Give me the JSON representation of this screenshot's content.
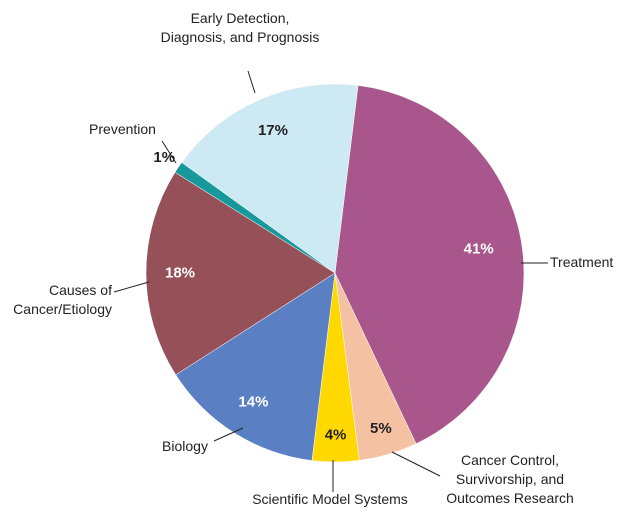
{
  "chart_data": {
    "type": "pie",
    "categories": [
      "Treatment",
      "Cancer Control, Survivorship, and Outcomes Research",
      "Scientific Model Systems",
      "Biology",
      "Causes of Cancer/Etiology",
      "Prevention",
      "Early Detection, Diagnosis, and Prognosis"
    ],
    "values": [
      41,
      5,
      4,
      14,
      18,
      1,
      17
    ],
    "value_labels": [
      "41%",
      "5%",
      "4%",
      "14%",
      "18%",
      "1%",
      "17%"
    ],
    "colors": [
      "#a8568c",
      "#f4c1a3",
      "#ffd800",
      "#5b7fc3",
      "#955157",
      "#17989a",
      "#cde9f3"
    ]
  }
}
